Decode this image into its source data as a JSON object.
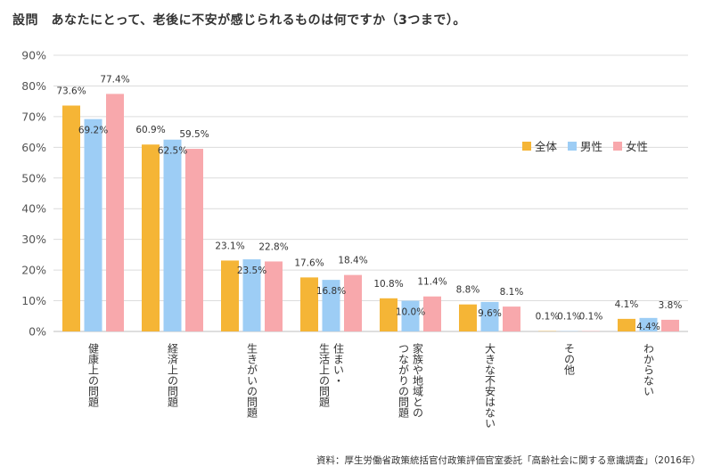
{
  "title": "設問　あなたにとって、老後に不安が感じられるものは何ですか（3つまで）。",
  "source": "資料：厚生労働省政策統括官付政策評価官室委託「高齢社会に関する意識調査」（2016年）",
  "chart_data": {
    "type": "bar",
    "categories": [
      [
        "健康上の問題"
      ],
      [
        "経済上の問題"
      ],
      [
        "生きがいの問題"
      ],
      [
        "住まい・",
        "生活上の問題"
      ],
      [
        "家族や地域との",
        "つながりの問題"
      ],
      [
        "大きな不安はない"
      ],
      [
        "その他"
      ],
      [
        "わからない"
      ]
    ],
    "series": [
      {
        "name": "全体",
        "color": "#F5B536",
        "values": [
          73.6,
          60.9,
          23.1,
          17.6,
          10.8,
          8.8,
          0.1,
          4.1
        ]
      },
      {
        "name": "男性",
        "color": "#9DCDF5",
        "values": [
          69.2,
          62.5,
          23.5,
          16.8,
          10.0,
          9.6,
          0.1,
          4.4
        ]
      },
      {
        "name": "女性",
        "color": "#F8A8AC",
        "values": [
          77.4,
          59.5,
          22.8,
          18.4,
          11.4,
          8.1,
          0.1,
          3.8
        ]
      }
    ],
    "ylim": [
      0,
      90
    ],
    "yticks": [
      "0%",
      "10%",
      "20%",
      "30%",
      "40%",
      "50%",
      "60%",
      "70%",
      "80%",
      "90%"
    ],
    "value_suffix": "%",
    "grid": true,
    "legend_position": "right"
  }
}
